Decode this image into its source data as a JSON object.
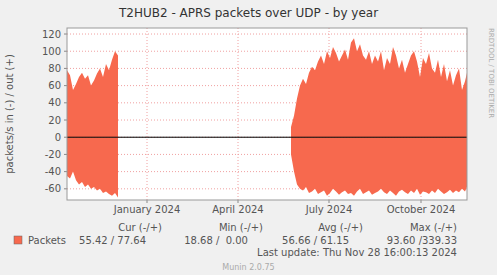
{
  "chart_data": {
    "type": "area",
    "title": "T2HUB2 - APRS packets over UDP - by year",
    "y_label": "packets/s in (-) / out (+)",
    "x": [
      -80,
      -77,
      -74,
      -71,
      -68,
      -65,
      -62,
      -59,
      -56,
      -53,
      -50,
      -47,
      -44,
      -41,
      -38,
      -35,
      -32,
      -29,
      58,
      144,
      147,
      150,
      153,
      156,
      159,
      162,
      165,
      168,
      171,
      174,
      177,
      180,
      183,
      186,
      189,
      192,
      195,
      198,
      201,
      204,
      207,
      210,
      213,
      216,
      219,
      222,
      225,
      228,
      231,
      234,
      237,
      240,
      243,
      246,
      249,
      252,
      255,
      258,
      261,
      264,
      267,
      270,
      273,
      276,
      279,
      282,
      285,
      288,
      291,
      294,
      297,
      300,
      303,
      306,
      309,
      312,
      315,
      318,
      320
    ],
    "xlim": [
      -80,
      320
    ],
    "xticks": [
      {
        "value": 0,
        "label": "January 2024"
      },
      {
        "value": 91,
        "label": "April 2024"
      },
      {
        "value": 182,
        "label": "July 2024"
      },
      {
        "value": 274,
        "label": "October 2024"
      }
    ],
    "ylim": [
      -73,
      127
    ],
    "yticks": [
      -60,
      -40,
      -20,
      0,
      20,
      40,
      60,
      80,
      100,
      120
    ],
    "grid": true,
    "series": [
      {
        "name": "Packets",
        "color": "#f7694e",
        "values": [
          78,
          72,
          55,
          62,
          70,
          75,
          68,
          72,
          60,
          66,
          74,
          80,
          70,
          85,
          78,
          90,
          100,
          95,
          null,
          12,
          25,
          45,
          60,
          68,
          62,
          75,
          82,
          78,
          88,
          95,
          85,
          100,
          92,
          105,
          98,
          88,
          95,
          102,
          90,
          110,
          115,
          100,
          108,
          95,
          90,
          100,
          85,
          95,
          88,
          100,
          78,
          92,
          85,
          105,
          95,
          80,
          90,
          75,
          85,
          95,
          100,
          88,
          70,
          92,
          85,
          98,
          80,
          75,
          90,
          70,
          85,
          65,
          78,
          60,
          72,
          80,
          55,
          65,
          75
        ],
        "in_values": [
          -45,
          -48,
          -40,
          -50,
          -55,
          -52,
          -58,
          -55,
          -60,
          -58,
          -62,
          -60,
          -65,
          -63,
          -66,
          -68,
          -65,
          -70,
          null,
          -20,
          -40,
          -55,
          -60,
          -62,
          -58,
          -65,
          -63,
          -60,
          -66,
          -64,
          -62,
          -68,
          -65,
          -60,
          -63,
          -67,
          -64,
          -62,
          -66,
          -65,
          -68,
          -63,
          -60,
          -66,
          -64,
          -62,
          -67,
          -65,
          -63,
          -60,
          -64,
          -66,
          -62,
          -65,
          -68,
          -63,
          -61,
          -64,
          -66,
          -62,
          -65,
          -60,
          -67,
          -63,
          -64,
          -66,
          -62,
          -65,
          -60,
          -63,
          -66,
          -64,
          -61,
          -65,
          -62,
          -64,
          -60,
          -63,
          -58
        ]
      }
    ],
    "stats": {
      "headers": [
        "Cur (-/+)",
        "Min (-/+)",
        "Avg (-/+)",
        "Max (-/+)"
      ],
      "values": [
        "55.42 / 77.64",
        "18.68 /  0.00",
        "56.66 / 61.15",
        "93.60 /339.33"
      ]
    },
    "last_update": "Last update: Thu Nov 28 16:00:13 2024",
    "footer": "Munin 2.0.75",
    "watermark": "RRDTOOL / TOBI OETIKER"
  }
}
